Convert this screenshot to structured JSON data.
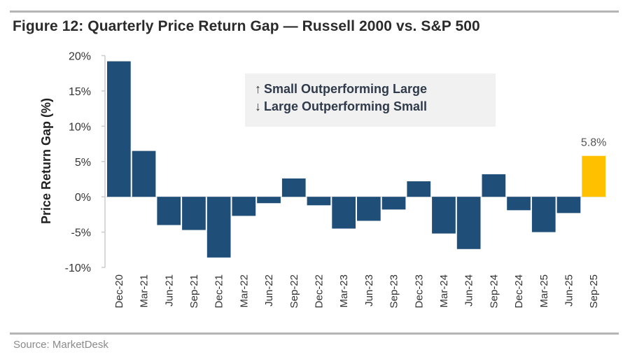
{
  "figure": {
    "title": "Figure 12: Quarterly Price Return Gap — Russell 2000 vs. S&P 500",
    "source": "Source: MarketDesk"
  },
  "legend": {
    "items": [
      {
        "arrow": "↑",
        "icon": "arrow-up-icon",
        "text": "Small Outperforming Large"
      },
      {
        "arrow": "↓",
        "icon": "arrow-down-icon",
        "text": "Large Outperforming Small"
      }
    ]
  },
  "colors": {
    "bar": "#1f4e79",
    "highlight": "#ffc000",
    "axis": "#cccccc"
  },
  "chart_data": {
    "type": "bar",
    "title": "Figure 12: Quarterly Price Return Gap — Russell 2000 vs. S&P 500",
    "xlabel": "",
    "ylabel": "Price Return Gap (%)",
    "ylim": [
      -10,
      20
    ],
    "yticks": [
      20,
      15,
      10,
      5,
      0,
      -5,
      -10
    ],
    "ytick_labels": [
      "20%",
      "15%",
      "10%",
      "5%",
      "0%",
      "-5%",
      "-10%"
    ],
    "grid": false,
    "categories": [
      "Dec-20",
      "Mar-21",
      "Jun-21",
      "Sep-21",
      "Dec-21",
      "Mar-22",
      "Jun-22",
      "Sep-22",
      "Dec-22",
      "Mar-23",
      "Jun-23",
      "Sep-23",
      "Dec-23",
      "Mar-24",
      "Jun-24",
      "Sep-24",
      "Dec-24",
      "Mar-25",
      "Jun-25",
      "Sep-25"
    ],
    "values": [
      19.2,
      6.5,
      -4.0,
      -4.7,
      -8.6,
      -2.7,
      -0.9,
      2.6,
      -1.2,
      -4.5,
      -3.4,
      -1.8,
      2.2,
      -5.2,
      -7.4,
      3.2,
      -1.9,
      -5.0,
      -2.3,
      5.8
    ],
    "highlight_index": 19,
    "annotations": [
      {
        "category": "Sep-25",
        "text": "5.8%"
      }
    ]
  }
}
